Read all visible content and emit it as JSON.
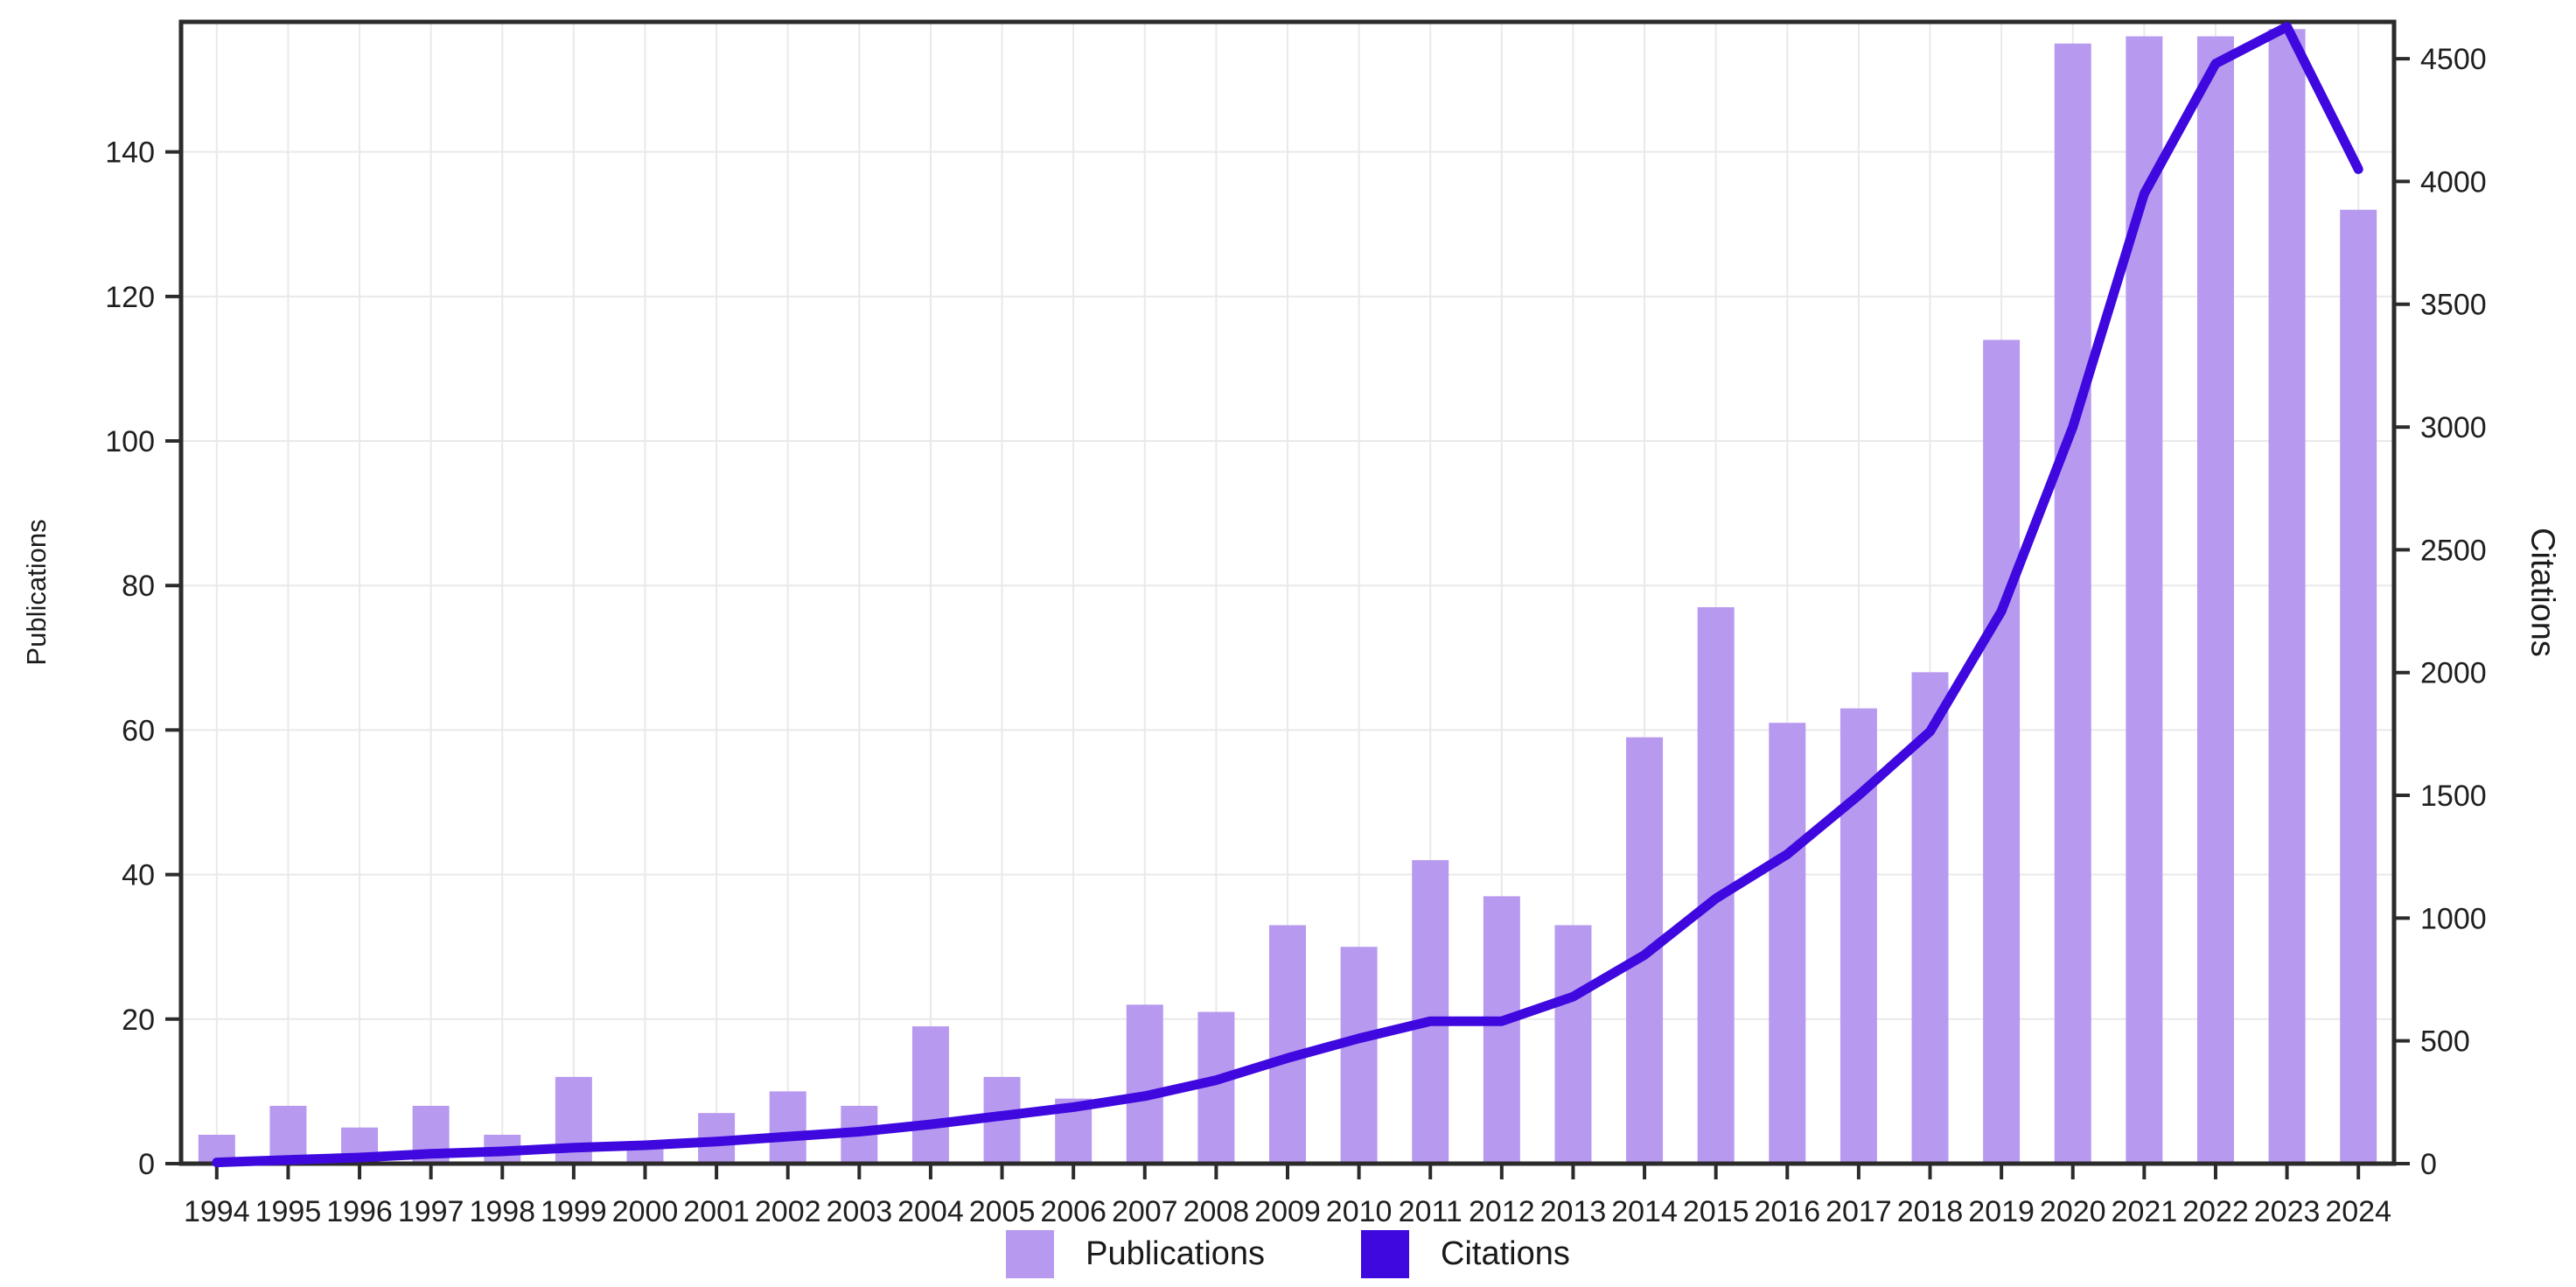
{
  "chart_data": {
    "type": "bar",
    "title": "",
    "xlabel": "",
    "ylabel_left": "Publications",
    "ylabel_right": "Citations",
    "categories": [
      "1994",
      "1995",
      "1996",
      "1997",
      "1998",
      "1999",
      "2000",
      "2001",
      "2002",
      "2003",
      "2004",
      "2005",
      "2006",
      "2007",
      "2008",
      "2009",
      "2010",
      "2011",
      "2012",
      "2013",
      "2014",
      "2015",
      "2016",
      "2017",
      "2018",
      "2019",
      "2020",
      "2021",
      "2022",
      "2023",
      "2024"
    ],
    "series": [
      {
        "name": "Publications",
        "type": "bar",
        "axis": "left",
        "color": "#b79af0",
        "values": [
          4,
          8,
          5,
          8,
          4,
          12,
          3,
          7,
          10,
          8,
          19,
          12,
          9,
          22,
          21,
          33,
          30,
          42,
          37,
          33,
          59,
          77,
          61,
          63,
          68,
          114,
          155,
          156,
          156,
          157,
          132
        ]
      },
      {
        "name": "Citations",
        "type": "line",
        "axis": "right",
        "color": "#3f08df",
        "values": [
          5,
          15,
          25,
          40,
          50,
          65,
          75,
          90,
          110,
          130,
          160,
          195,
          230,
          275,
          340,
          430,
          510,
          580,
          580,
          680,
          850,
          1080,
          1260,
          1500,
          1760,
          2250,
          3000,
          3950,
          4480,
          4630,
          4050
        ]
      }
    ],
    "ylim_left": [
      0,
      158
    ],
    "ylim_right": [
      0,
      4650
    ],
    "yticks_left": [
      0,
      20,
      40,
      60,
      80,
      100,
      120,
      140
    ],
    "yticks_right": [
      0,
      500,
      1000,
      1500,
      2000,
      2500,
      3000,
      3500,
      4000,
      4500
    ],
    "grid": true,
    "legend_position": "bottom",
    "colors": {
      "grid": "#e9e9e9",
      "spine": "#2b2b2b",
      "tick_label": "#1f1f1f",
      "background": "#ffffff"
    }
  }
}
